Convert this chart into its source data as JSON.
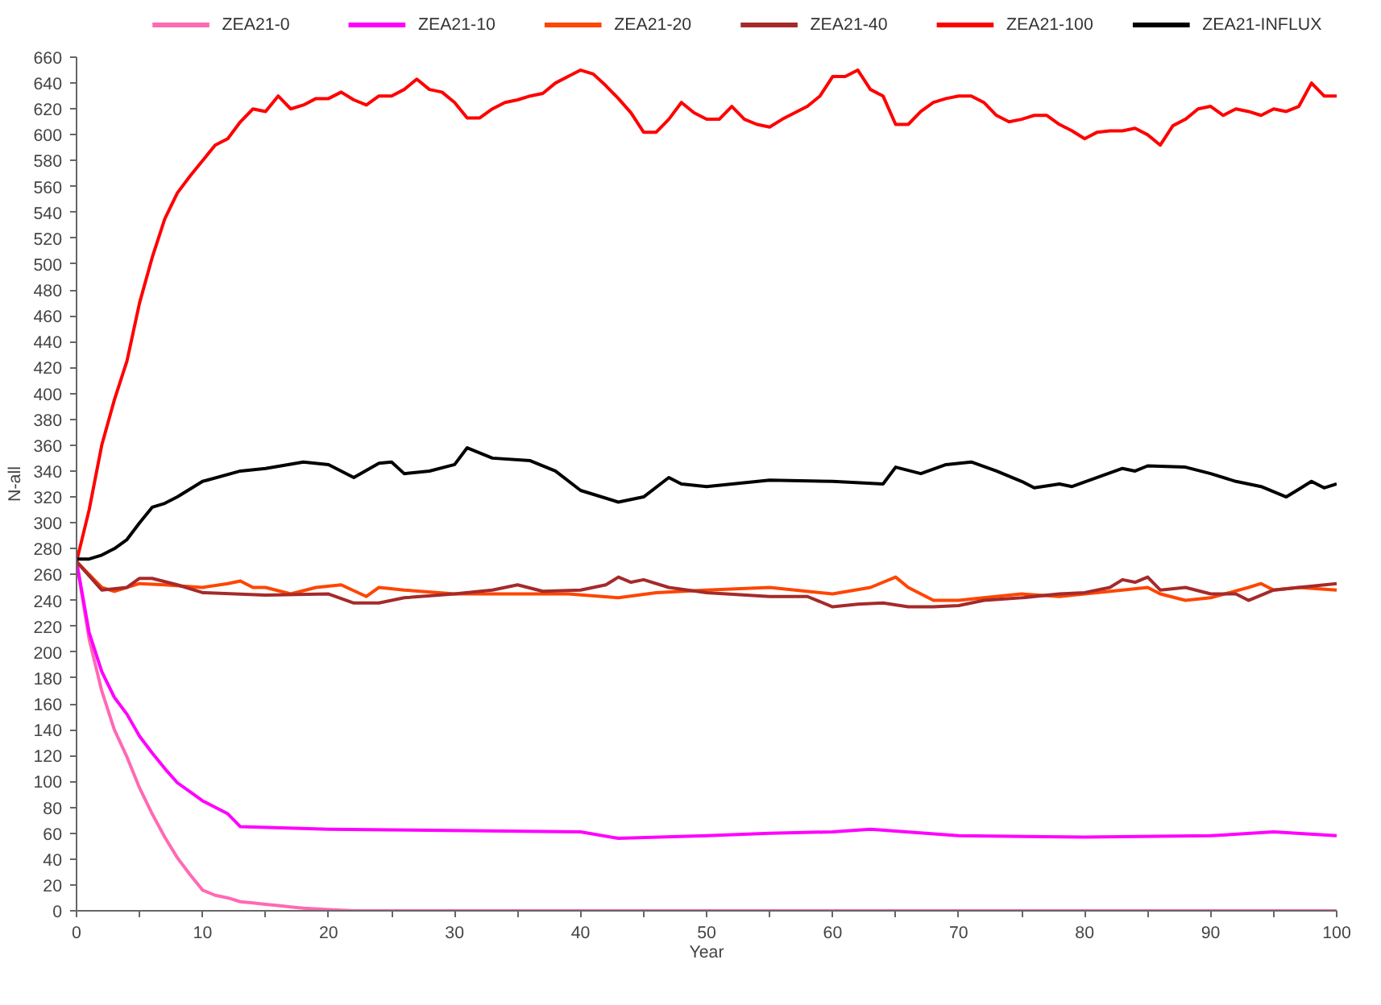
{
  "chart_data": {
    "type": "line",
    "xlabel": "Year",
    "ylabel": "N-all",
    "xlim": [
      0,
      100
    ],
    "ylim": [
      0,
      660
    ],
    "xticks": [
      0,
      {
        "value": 5,
        "label": null
      },
      10,
      {
        "value": 15,
        "label": null
      },
      20,
      {
        "value": 25,
        "label": null
      },
      30,
      {
        "value": 35,
        "label": null
      },
      40,
      {
        "value": 45,
        "label": null
      },
      50,
      {
        "value": 55,
        "label": null
      },
      60,
      {
        "value": 65,
        "label": null
      },
      70,
      {
        "value": 75,
        "label": null
      },
      80,
      {
        "value": 85,
        "label": null
      },
      90,
      {
        "value": 95,
        "label": null
      },
      100
    ],
    "yticks": [
      0,
      20,
      40,
      60,
      80,
      100,
      120,
      140,
      160,
      180,
      200,
      220,
      240,
      260,
      280,
      300,
      320,
      340,
      360,
      380,
      400,
      420,
      440,
      460,
      480,
      500,
      520,
      540,
      560,
      580,
      600,
      620,
      640,
      660
    ],
    "grid": false,
    "legend": "top",
    "marker": "none",
    "line_style": "solid",
    "series": [
      {
        "name": "ZEA21-0",
        "color": "#ff69b4",
        "x": [
          0,
          1,
          2,
          3,
          4,
          5,
          6,
          7,
          8,
          9,
          10,
          11,
          12,
          13,
          14,
          15,
          16,
          17,
          18,
          20,
          22,
          100
        ],
        "values": [
          270,
          210,
          170,
          140,
          119,
          95,
          75,
          57,
          41,
          28,
          16,
          12,
          10,
          7,
          6,
          5,
          4,
          3,
          2,
          1,
          0,
          0
        ]
      },
      {
        "name": "ZEA21-10",
        "color": "#ff00ff",
        "x": [
          0,
          1,
          2,
          3,
          4,
          5,
          6,
          7,
          8,
          9,
          10,
          12,
          13,
          20,
          40,
          43,
          50,
          55,
          60,
          63,
          70,
          80,
          90,
          95,
          100
        ],
        "values": [
          270,
          215,
          185,
          165,
          152,
          135,
          122,
          110,
          99,
          92,
          85,
          75,
          65,
          63,
          61,
          56,
          58,
          60,
          61,
          63,
          58,
          57,
          58,
          61,
          58
        ]
      },
      {
        "name": "ZEA21-20",
        "color": "#ff4500",
        "x": [
          0,
          2,
          3,
          5,
          7,
          10,
          12,
          13,
          14,
          15,
          17,
          19,
          21,
          23,
          24,
          26,
          30,
          35,
          39,
          43,
          46,
          50,
          55,
          60,
          63,
          65,
          66,
          68,
          70,
          72,
          75,
          78,
          80,
          83,
          85,
          86,
          88,
          90,
          93,
          94,
          95,
          97,
          100
        ],
        "values": [
          270,
          250,
          247,
          253,
          252,
          250,
          253,
          255,
          250,
          250,
          245,
          250,
          252,
          243,
          250,
          248,
          245,
          245,
          245,
          242,
          246,
          248,
          250,
          245,
          250,
          258,
          250,
          240,
          240,
          242,
          245,
          243,
          245,
          248,
          250,
          245,
          240,
          242,
          250,
          253,
          248,
          250,
          248
        ]
      },
      {
        "name": "ZEA21-40",
        "color": "#a52a2a",
        "x": [
          0,
          2,
          4,
          5,
          6,
          8,
          10,
          15,
          20,
          22,
          24,
          26,
          30,
          33,
          35,
          37,
          40,
          42,
          43,
          44,
          45,
          47,
          50,
          55,
          58,
          60,
          62,
          64,
          66,
          68,
          70,
          72,
          75,
          78,
          80,
          82,
          83,
          84,
          85,
          86,
          88,
          90,
          92,
          93,
          95,
          97,
          100
        ],
        "values": [
          270,
          248,
          250,
          257,
          257,
          252,
          246,
          244,
          245,
          238,
          238,
          242,
          245,
          248,
          252,
          247,
          248,
          252,
          258,
          254,
          256,
          250,
          246,
          243,
          243,
          235,
          237,
          238,
          235,
          235,
          236,
          240,
          242,
          245,
          246,
          250,
          256,
          254,
          258,
          248,
          250,
          245,
          245,
          240,
          248,
          250,
          253
        ]
      },
      {
        "name": "ZEA21-100",
        "color": "#ff0000",
        "x": [
          0,
          1,
          2,
          3,
          4,
          5,
          6,
          7,
          8,
          9,
          10,
          11,
          12,
          13,
          14,
          15,
          16,
          17,
          18,
          19,
          20,
          21,
          22,
          23,
          24,
          25,
          26,
          27,
          28,
          29,
          30,
          31,
          32,
          33,
          34,
          35,
          36,
          37,
          38,
          39,
          40,
          41,
          42,
          43,
          44,
          45,
          46,
          47,
          48,
          49,
          50,
          51,
          52,
          53,
          54,
          55,
          56,
          57,
          58,
          59,
          60,
          61,
          62,
          63,
          64,
          65,
          66,
          67,
          68,
          69,
          70,
          71,
          72,
          73,
          74,
          75,
          76,
          77,
          78,
          79,
          80,
          81,
          82,
          83,
          84,
          85,
          86,
          87,
          88,
          89,
          90,
          91,
          92,
          93,
          94,
          95,
          96,
          97,
          98,
          99,
          100
        ],
        "values": [
          270,
          310,
          360,
          395,
          425,
          470,
          505,
          535,
          555,
          568,
          580,
          592,
          597,
          610,
          620,
          618,
          630,
          620,
          623,
          628,
          628,
          633,
          627,
          623,
          630,
          630,
          635,
          643,
          635,
          633,
          625,
          613,
          613,
          620,
          625,
          627,
          630,
          632,
          640,
          645,
          650,
          647,
          638,
          628,
          617,
          602,
          602,
          612,
          625,
          617,
          612,
          612,
          622,
          612,
          608,
          606,
          612,
          617,
          622,
          630,
          645,
          645,
          650,
          635,
          630,
          608,
          608,
          618,
          625,
          628,
          630,
          630,
          625,
          615,
          610,
          612,
          615,
          615,
          608,
          603,
          597,
          602,
          603,
          603,
          605,
          600,
          592,
          607,
          612,
          620,
          622,
          615,
          620,
          618,
          615,
          620,
          618,
          622,
          640,
          630,
          630
        ]
      },
      {
        "name": "ZEA21-INFLUX",
        "color": "#000000",
        "x": [
          0,
          1,
          2,
          3,
          4,
          5,
          6,
          7,
          8,
          10,
          13,
          15,
          18,
          20,
          22,
          24,
          25,
          26,
          28,
          30,
          31,
          33,
          36,
          38,
          40,
          43,
          45,
          47,
          48,
          50,
          55,
          60,
          64,
          65,
          67,
          69,
          71,
          73,
          75,
          76,
          78,
          79,
          81,
          83,
          84,
          85,
          88,
          90,
          92,
          94,
          96,
          97,
          98,
          99,
          100
        ],
        "values": [
          272,
          272,
          275,
          280,
          287,
          300,
          312,
          315,
          320,
          332,
          340,
          342,
          347,
          345,
          335,
          346,
          347,
          338,
          340,
          345,
          358,
          350,
          348,
          340,
          325,
          316,
          320,
          335,
          330,
          328,
          333,
          332,
          330,
          343,
          338,
          345,
          347,
          340,
          332,
          327,
          330,
          328,
          335,
          342,
          340,
          344,
          343,
          338,
          332,
          328,
          320,
          326,
          332,
          327,
          330
        ]
      }
    ]
  }
}
